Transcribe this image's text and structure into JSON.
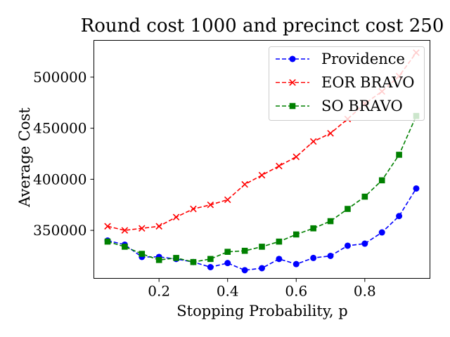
{
  "chart_data": {
    "type": "line",
    "title": "Round cost 1000 and precinct cost 250",
    "xlabel": "Stopping Probability, p",
    "ylabel": "Average Cost",
    "xlim": [
      0.01,
      0.99
    ],
    "ylim": [
      303000,
      536000
    ],
    "xticks": [
      0.2,
      0.4,
      0.6,
      0.8
    ],
    "xtick_labels": [
      "0.2",
      "0.4",
      "0.6",
      "0.8"
    ],
    "yticks": [
      350000,
      400000,
      450000,
      500000
    ],
    "ytick_labels": [
      "350000",
      "400000",
      "450000",
      "500000"
    ],
    "grid": false,
    "legend_position": "upper-right",
    "x": [
      0.05,
      0.1,
      0.15,
      0.2,
      0.25,
      0.3,
      0.35,
      0.4,
      0.45,
      0.5,
      0.55,
      0.6,
      0.65,
      0.7,
      0.75,
      0.8,
      0.85,
      0.9,
      0.95
    ],
    "series": [
      {
        "name": "Providence",
        "color": "#0000ff",
        "marker": "circle",
        "values": [
          340000,
          336000,
          324000,
          324000,
          322000,
          319000,
          314000,
          318000,
          311000,
          313000,
          322000,
          317000,
          323000,
          325000,
          335000,
          337000,
          348000,
          364000,
          391000
        ]
      },
      {
        "name": "EOR BRAVO",
        "color": "#ff0000",
        "marker": "x",
        "values": [
          354000,
          350000,
          352000,
          354000,
          363000,
          371000,
          375000,
          380000,
          395000,
          404000,
          413000,
          422000,
          437000,
          445000,
          459000,
          474000,
          486000,
          501000,
          524000
        ]
      },
      {
        "name": "SO BRAVO",
        "color": "#008000",
        "marker": "square",
        "values": [
          339000,
          334000,
          327000,
          321000,
          323000,
          319000,
          322000,
          329000,
          330000,
          334000,
          339000,
          346000,
          352000,
          359000,
          371000,
          383000,
          399000,
          424000,
          462000
        ]
      }
    ]
  }
}
